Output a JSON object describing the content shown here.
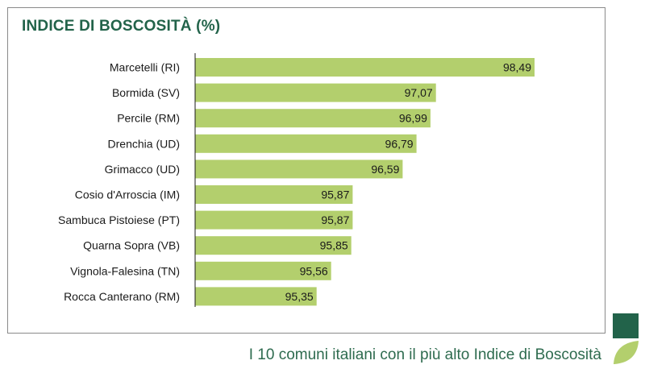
{
  "colors": {
    "bar": "#b3cf6d",
    "title": "#22634a",
    "caption": "#2e6b4f",
    "axis": "#1a1a1a",
    "logo_dark": "#22634a",
    "logo_light": "#b3cf6d"
  },
  "caption": "I 10 comuni italiani con il più alto Indice di Boscosità",
  "logo": {
    "icon": "leaf-logo-icon"
  },
  "chart_data": {
    "type": "bar",
    "orientation": "horizontal",
    "title": "INDICE DI BOSCOSITÀ (%)",
    "xlabel": "",
    "ylabel": "",
    "grid": false,
    "categories": [
      "Marcetelli (RI)",
      "Bormida (SV)",
      "Percile (RM)",
      "Drenchia (UD)",
      "Grimacco (UD)",
      "Cosio d'Arroscia (IM)",
      "Sambuca Pistoiese (PT)",
      "Quarna Sopra (VB)",
      "Vignola-Falesina (TN)",
      "Rocca Canterano (RM)"
    ],
    "values": [
      98.49,
      97.07,
      96.99,
      96.79,
      96.59,
      95.87,
      95.87,
      95.85,
      95.56,
      95.35
    ],
    "value_labels": [
      "98,49",
      "97,07",
      "96,99",
      "96,79",
      "96,59",
      "95,87",
      "95,87",
      "95,85",
      "95,56",
      "95,35"
    ],
    "xlim": [
      93.6,
      100
    ]
  }
}
